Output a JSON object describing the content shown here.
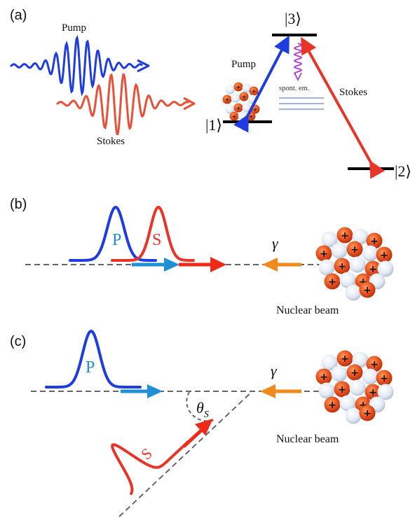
{
  "panels": {
    "a": {
      "label": "(a)",
      "pump_label": "Pump",
      "stokes_label": "Stokes",
      "level_1": "|1⟩",
      "level_2": "|2⟩",
      "level_3": "|3⟩",
      "transition_pump": "Pump",
      "transition_stokes": "Stokes",
      "spontaneous_emission": "spont. em."
    },
    "b": {
      "label": "(b)",
      "pulse_p": "P",
      "pulse_s": "S",
      "gamma": "γ",
      "beam_label": "Nuclear beam"
    },
    "c": {
      "label": "(c)",
      "pulse_p": "P",
      "pulse_s": "S",
      "gamma": "γ",
      "angle_symbol": "θ",
      "angle_subscript": "S",
      "beam_label": "Nuclear beam"
    }
  },
  "colors": {
    "pump": "#1e3de0",
    "stokes": "#e8352a",
    "arrow_blue": "#1f8fd6",
    "arrow_red": "#ee2a18",
    "gamma": "#f08a1c",
    "spont": "#b03cd6",
    "proton": "#e8501e",
    "neutron": "#e6edf6"
  }
}
